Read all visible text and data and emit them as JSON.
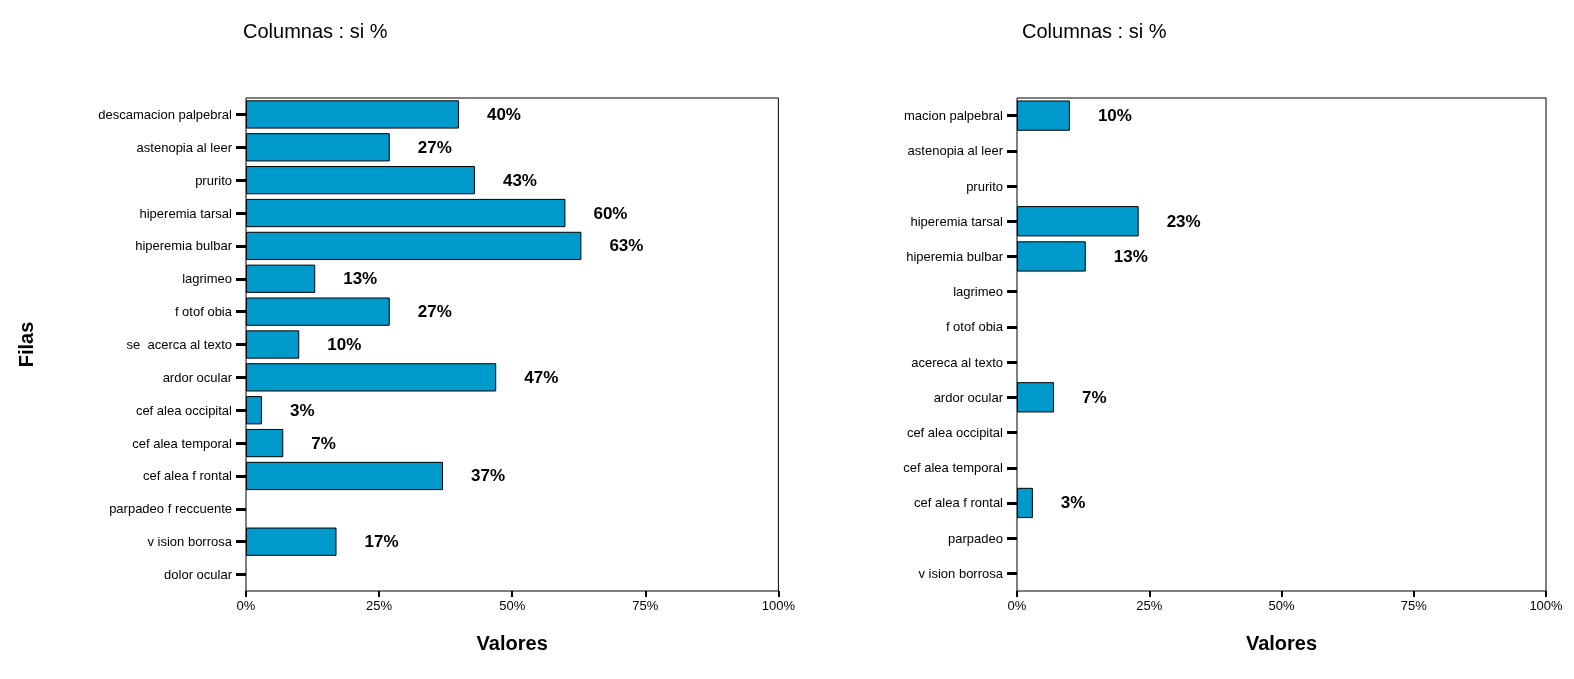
{
  "chart_data": [
    {
      "type": "bar",
      "orientation": "horizontal",
      "title": "Columnas : si %",
      "xlabel": "Valores",
      "ylabel": "Filas",
      "categories": [
        "descamacion palpebral",
        "astenopia al leer",
        "prurito",
        "hiperemia tarsal",
        "hiperemia bulbar",
        "lagrimeo",
        "f otof obia",
        "se  acerca al texto",
        "ardor ocular",
        "cef alea occipital",
        "cef alea temporal",
        "cef alea f rontal",
        "parpadeo f reccuente",
        "v ision borrosa",
        "dolor ocular"
      ],
      "values": [
        40,
        27,
        43,
        60,
        63,
        13,
        27,
        10,
        47,
        3,
        7,
        37,
        0,
        17,
        0
      ],
      "value_labels": [
        "40%",
        "27%",
        "43%",
        "60%",
        "63%",
        "13%",
        "27%",
        "10%",
        "47%",
        "3%",
        "7%",
        "37%",
        null,
        "17%",
        null
      ],
      "color": "#0099cc",
      "xlim": [
        0,
        100
      ],
      "xticks": [
        {
          "value": 0,
          "label": "0%"
        },
        {
          "value": 25,
          "label": "25%"
        },
        {
          "value": 50,
          "label": "50%"
        },
        {
          "value": 75,
          "label": "75%"
        },
        {
          "value": 100,
          "label": "100%"
        }
      ],
      "grid": false
    },
    {
      "type": "bar",
      "orientation": "horizontal",
      "title": "Columnas : si %",
      "xlabel": "Valores",
      "categories": [
        "macion palpebral",
        "astenopia al leer",
        "prurito",
        "hiperemia tarsal",
        "hiperemia bulbar",
        "lagrimeo",
        "f otof obia",
        "acereca al texto",
        "ardor ocular",
        "cef alea occipital",
        "cef alea temporal",
        "cef alea f rontal",
        "parpadeo",
        "v ision borrosa"
      ],
      "values": [
        10,
        0,
        0,
        23,
        13,
        0,
        0,
        0,
        7,
        0,
        0,
        3,
        0,
        0
      ],
      "value_labels": [
        "10%",
        null,
        null,
        "23%",
        "13%",
        null,
        null,
        null,
        "7%",
        null,
        null,
        "3%",
        null,
        null
      ],
      "color": "#0099cc",
      "xlim": [
        0,
        100
      ],
      "xticks": [
        {
          "value": 0,
          "label": "0%"
        },
        {
          "value": 25,
          "label": "25%"
        },
        {
          "value": 50,
          "label": "50%"
        },
        {
          "value": 75,
          "label": "75%"
        },
        {
          "value": 100,
          "label": "100%"
        }
      ],
      "grid": false
    }
  ]
}
